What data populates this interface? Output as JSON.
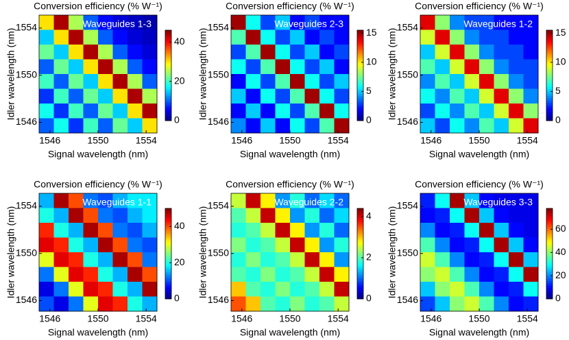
{
  "chart_data": [
    {
      "type": "heatmap",
      "title": "Conversion efficiency (% W⁻¹)",
      "annotation": "Waveguides 1-3",
      "xlabel": "Signal wavelength (nm)",
      "ylabel": "Idler wavelength (nm)",
      "colormap": "jet",
      "xlim": [
        1545.1,
        1554.9
      ],
      "ylim": [
        1545.1,
        1555.1
      ],
      "xticks": [
        1546,
        1550,
        1554
      ],
      "yticks": [
        1546,
        1550,
        1554
      ],
      "clim": [
        0,
        46
      ],
      "cticks": [
        0,
        20,
        40
      ],
      "z": [
        [
          30,
          44,
          25,
          10,
          6,
          4,
          3,
          2
        ],
        [
          15,
          30,
          44,
          25,
          10,
          6,
          4,
          3
        ],
        [
          22,
          15,
          30,
          44,
          25,
          10,
          6,
          4
        ],
        [
          10,
          22,
          15,
          30,
          44,
          25,
          10,
          6
        ],
        [
          20,
          10,
          22,
          15,
          30,
          44,
          25,
          10
        ],
        [
          8,
          20,
          10,
          22,
          15,
          30,
          44,
          25
        ],
        [
          18,
          8,
          20,
          10,
          22,
          15,
          30,
          44
        ],
        [
          10,
          18,
          8,
          20,
          10,
          22,
          15,
          30
        ]
      ]
    },
    {
      "type": "heatmap",
      "title": "Conversion efficiency (% W⁻¹)",
      "annotation": "Waveguides 2-3",
      "xlabel": "Signal wavelength (nm)",
      "ylabel": "Idler wavelength (nm)",
      "colormap": "jet",
      "xlim": [
        1545.1,
        1554.9
      ],
      "ylim": [
        1545.1,
        1555.1
      ],
      "xticks": [
        1546,
        1550,
        1554
      ],
      "yticks": [
        1546,
        1550,
        1554
      ],
      "clim": [
        0,
        15.5
      ],
      "cticks": [
        0,
        5,
        10,
        15
      ],
      "z": [
        [
          15,
          6,
          3,
          5,
          2,
          3,
          2,
          2
        ],
        [
          7,
          15,
          6,
          3,
          5,
          2,
          3,
          2
        ],
        [
          3,
          7,
          15,
          6,
          3,
          5,
          2,
          3
        ],
        [
          6,
          3,
          7,
          15,
          6,
          3,
          5,
          2
        ],
        [
          2,
          6,
          3,
          7,
          15,
          6,
          3,
          5
        ],
        [
          5,
          2,
          6,
          3,
          7,
          15,
          6,
          3
        ],
        [
          2,
          5,
          2,
          6,
          3,
          7,
          15,
          6
        ],
        [
          4,
          2,
          5,
          2,
          6,
          3,
          7,
          15
        ]
      ]
    },
    {
      "type": "heatmap",
      "title": "Conversion efficiency (% W⁻¹)",
      "annotation": "Waveguides 1-2",
      "xlabel": "Signal wavelength (nm)",
      "ylabel": "Idler wavelength (nm)",
      "colormap": "jet",
      "xlim": [
        1545.1,
        1554.9
      ],
      "ylim": [
        1545.1,
        1555.1
      ],
      "xticks": [
        1546,
        1550,
        1554
      ],
      "yticks": [
        1546,
        1550,
        1554
      ],
      "clim": [
        0,
        15.5
      ],
      "cticks": [
        0,
        5,
        10,
        15
      ],
      "z": [
        [
          14,
          8,
          4,
          3,
          3,
          2,
          2,
          2
        ],
        [
          9,
          14,
          8,
          4,
          3,
          3,
          2,
          2
        ],
        [
          5,
          9,
          14,
          8,
          4,
          3,
          3,
          2
        ],
        [
          7,
          5,
          9,
          14,
          8,
          4,
          3,
          3
        ],
        [
          4,
          7,
          5,
          9,
          14,
          8,
          4,
          3
        ],
        [
          6,
          4,
          7,
          5,
          9,
          14,
          8,
          4
        ],
        [
          3,
          6,
          4,
          7,
          5,
          9,
          14,
          8
        ],
        [
          5,
          3,
          6,
          4,
          7,
          5,
          9,
          14
        ]
      ]
    },
    {
      "type": "heatmap",
      "title": "Conversion efficiency (% W⁻¹)",
      "annotation": "Waveguides 1-1",
      "xlabel": "Signal wavelength (nm)",
      "ylabel": "Idler wavelength (nm)",
      "colormap": "jet",
      "xlim": [
        1545.1,
        1554.9
      ],
      "ylim": [
        1545.1,
        1555.1
      ],
      "xticks": [
        1546,
        1550,
        1554
      ],
      "yticks": [
        1546,
        1550,
        1554
      ],
      "clim": [
        0,
        50
      ],
      "cticks": [
        0,
        20,
        40
      ],
      "z": [
        [
          15,
          48,
          40,
          12,
          10,
          15,
          18,
          18
        ],
        [
          20,
          15,
          48,
          40,
          12,
          10,
          15,
          18
        ],
        [
          42,
          20,
          15,
          48,
          40,
          12,
          10,
          15
        ],
        [
          45,
          42,
          20,
          15,
          48,
          40,
          12,
          10
        ],
        [
          30,
          45,
          42,
          20,
          15,
          48,
          40,
          12
        ],
        [
          12,
          30,
          45,
          42,
          20,
          15,
          48,
          40
        ],
        [
          5,
          12,
          30,
          45,
          42,
          20,
          15,
          48
        ],
        [
          10,
          5,
          12,
          30,
          45,
          42,
          20,
          15
        ]
      ]
    },
    {
      "type": "heatmap",
      "title": "Conversion efficiency (% W⁻¹)",
      "annotation": "Waveguides 2-2",
      "xlabel": "Signal wavelength (nm)",
      "ylabel": "Idler wavelength (nm)",
      "colormap": "jet",
      "xlim": [
        1545.1,
        1554.9
      ],
      "ylim": [
        1545.1,
        1555.1
      ],
      "xticks": [
        1546,
        1550,
        1554
      ],
      "yticks": [
        1546,
        1550,
        1554
      ],
      "clim": [
        0,
        4.4
      ],
      "cticks": [
        0,
        2,
        4
      ],
      "z": [
        [
          2.5,
          4.1,
          2.8,
          1.2,
          1.8,
          1,
          1.5,
          1
        ],
        [
          2,
          2.5,
          4.1,
          2.8,
          1.2,
          1.8,
          1,
          1.5
        ],
        [
          1.8,
          2,
          2.5,
          4.1,
          2.8,
          1.2,
          1.8,
          1
        ],
        [
          2.2,
          1.8,
          2,
          2.5,
          4.1,
          2.8,
          1.2,
          1.8
        ],
        [
          1.8,
          2.2,
          1.8,
          2,
          2.5,
          4.1,
          2.8,
          1.2
        ],
        [
          2,
          1.8,
          2.2,
          1.8,
          2,
          2.5,
          4.1,
          2.8
        ],
        [
          3,
          2,
          1.8,
          2.2,
          1.8,
          2,
          2.5,
          4.1
        ],
        [
          3.5,
          3,
          2,
          1.8,
          2.2,
          1.8,
          2,
          2.5
        ]
      ]
    },
    {
      "type": "heatmap",
      "title": "Conversion efficiency (% W⁻¹)",
      "annotation": "Waveguides 3-3",
      "xlabel": "Signal wavelength (nm)",
      "ylabel": "Idler wavelength (nm)",
      "colormap": "jet",
      "xlim": [
        1545.1,
        1554.9
      ],
      "ylim": [
        1545.1,
        1555.1
      ],
      "xticks": [
        1546,
        1550,
        1554
      ],
      "yticks": [
        1546,
        1550,
        1554
      ],
      "clim": [
        0,
        78
      ],
      "cticks": [
        0,
        20,
        40,
        60
      ],
      "z": [
        [
          12,
          30,
          75,
          25,
          10,
          8,
          8,
          8
        ],
        [
          10,
          12,
          30,
          75,
          25,
          10,
          8,
          8
        ],
        [
          20,
          10,
          12,
          30,
          75,
          25,
          10,
          8
        ],
        [
          35,
          20,
          10,
          12,
          30,
          75,
          25,
          10
        ],
        [
          45,
          35,
          20,
          10,
          12,
          30,
          75,
          25
        ],
        [
          40,
          45,
          35,
          20,
          10,
          12,
          30,
          75
        ],
        [
          25,
          40,
          45,
          35,
          20,
          10,
          12,
          30
        ],
        [
          15,
          25,
          40,
          45,
          35,
          20,
          10,
          12
        ]
      ]
    }
  ]
}
